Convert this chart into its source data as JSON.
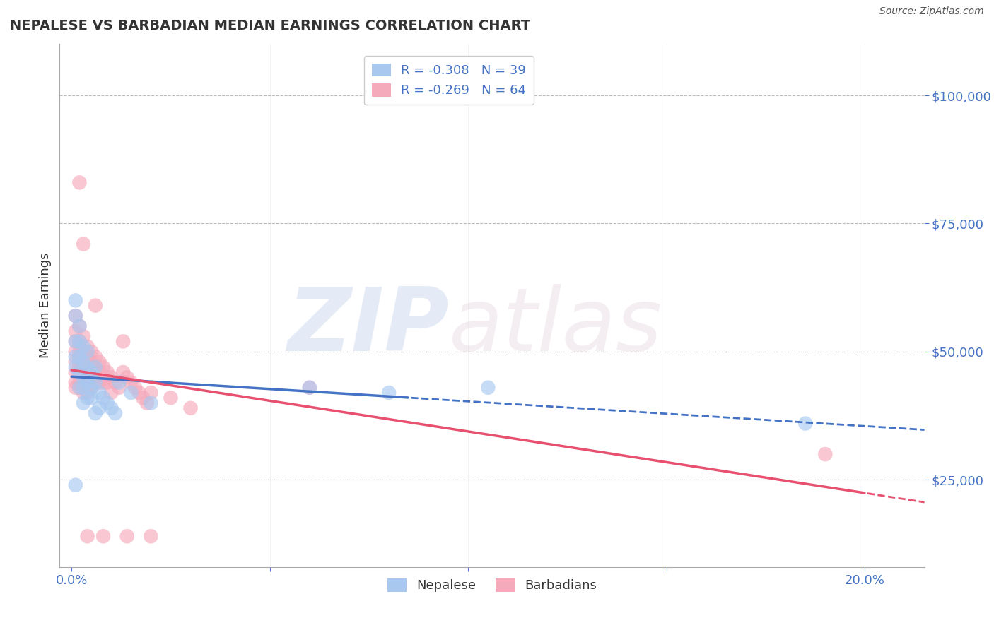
{
  "title": "NEPALESE VS BARBADIAN MEDIAN EARNINGS CORRELATION CHART",
  "source": "Source: ZipAtlas.com",
  "xlabel_ticks": [
    "0.0%",
    "",
    "",
    "",
    "",
    "",
    "",
    "",
    "20.0%"
  ],
  "xlabel_vals": [
    0.0,
    0.025,
    0.05,
    0.075,
    0.1,
    0.125,
    0.15,
    0.175,
    0.2
  ],
  "ylabel_ticks": [
    "$25,000",
    "$50,000",
    "$75,000",
    "$100,000"
  ],
  "ylabel_vals": [
    25000,
    50000,
    75000,
    100000
  ],
  "xlim": [
    -0.003,
    0.215
  ],
  "ylim": [
    8000,
    110000
  ],
  "ylabel": "Median Earnings",
  "nepalese_color": "#A8C8F0",
  "barbadian_color": "#F5AABB",
  "nepalese_line_color": "#4472C4",
  "barbadian_line_color": "#E85070",
  "nepalese_R": -0.308,
  "nepalese_N": 39,
  "barbadian_R": -0.269,
  "barbadian_N": 64,
  "nepalese_scatter": [
    [
      0.001,
      57000
    ],
    [
      0.001,
      52000
    ],
    [
      0.001,
      49000
    ],
    [
      0.001,
      47000
    ],
    [
      0.002,
      55000
    ],
    [
      0.002,
      52000
    ],
    [
      0.002,
      49000
    ],
    [
      0.002,
      46000
    ],
    [
      0.002,
      43000
    ],
    [
      0.003,
      51000
    ],
    [
      0.003,
      48000
    ],
    [
      0.003,
      45000
    ],
    [
      0.003,
      43000
    ],
    [
      0.003,
      40000
    ],
    [
      0.004,
      50000
    ],
    [
      0.004,
      47000
    ],
    [
      0.004,
      44000
    ],
    [
      0.004,
      41000
    ],
    [
      0.005,
      46000
    ],
    [
      0.005,
      43000
    ],
    [
      0.005,
      41000
    ],
    [
      0.006,
      47000
    ],
    [
      0.006,
      44000
    ],
    [
      0.006,
      38000
    ],
    [
      0.007,
      42000
    ],
    [
      0.007,
      39000
    ],
    [
      0.008,
      41000
    ],
    [
      0.009,
      40000
    ],
    [
      0.01,
      39000
    ],
    [
      0.011,
      38000
    ],
    [
      0.012,
      44000
    ],
    [
      0.015,
      42000
    ],
    [
      0.02,
      40000
    ],
    [
      0.001,
      24000
    ],
    [
      0.06,
      43000
    ],
    [
      0.08,
      42000
    ],
    [
      0.105,
      43000
    ],
    [
      0.185,
      36000
    ],
    [
      0.001,
      60000
    ]
  ],
  "barbadian_scatter": [
    [
      0.001,
      57000
    ],
    [
      0.001,
      54000
    ],
    [
      0.001,
      52000
    ],
    [
      0.001,
      50000
    ],
    [
      0.001,
      48000
    ],
    [
      0.001,
      46000
    ],
    [
      0.001,
      44000
    ],
    [
      0.001,
      43000
    ],
    [
      0.002,
      55000
    ],
    [
      0.002,
      52000
    ],
    [
      0.002,
      50000
    ],
    [
      0.002,
      48000
    ],
    [
      0.002,
      46000
    ],
    [
      0.002,
      44000
    ],
    [
      0.002,
      43000
    ],
    [
      0.003,
      53000
    ],
    [
      0.003,
      50000
    ],
    [
      0.003,
      48000
    ],
    [
      0.003,
      46000
    ],
    [
      0.003,
      44000
    ],
    [
      0.003,
      42000
    ],
    [
      0.004,
      51000
    ],
    [
      0.004,
      49000
    ],
    [
      0.004,
      47000
    ],
    [
      0.004,
      45000
    ],
    [
      0.004,
      42000
    ],
    [
      0.005,
      50000
    ],
    [
      0.005,
      48000
    ],
    [
      0.005,
      46000
    ],
    [
      0.005,
      43000
    ],
    [
      0.006,
      49000
    ],
    [
      0.006,
      47000
    ],
    [
      0.006,
      45000
    ],
    [
      0.007,
      48000
    ],
    [
      0.007,
      46000
    ],
    [
      0.007,
      44000
    ],
    [
      0.008,
      47000
    ],
    [
      0.008,
      44000
    ],
    [
      0.009,
      46000
    ],
    [
      0.009,
      44000
    ],
    [
      0.01,
      45000
    ],
    [
      0.01,
      42000
    ],
    [
      0.011,
      44000
    ],
    [
      0.012,
      43000
    ],
    [
      0.013,
      46000
    ],
    [
      0.014,
      45000
    ],
    [
      0.015,
      44000
    ],
    [
      0.016,
      43000
    ],
    [
      0.017,
      42000
    ],
    [
      0.018,
      41000
    ],
    [
      0.019,
      40000
    ],
    [
      0.02,
      42000
    ],
    [
      0.025,
      41000
    ],
    [
      0.03,
      39000
    ],
    [
      0.002,
      83000
    ],
    [
      0.003,
      71000
    ],
    [
      0.006,
      59000
    ],
    [
      0.013,
      52000
    ],
    [
      0.06,
      43000
    ],
    [
      0.19,
      30000
    ],
    [
      0.008,
      14000
    ],
    [
      0.014,
      14000
    ],
    [
      0.004,
      14000
    ],
    [
      0.02,
      14000
    ]
  ],
  "watermark_zip": "ZIP",
  "watermark_atlas": "atlas",
  "background_color": "#FFFFFF",
  "grid_color": "#CCCCCC"
}
